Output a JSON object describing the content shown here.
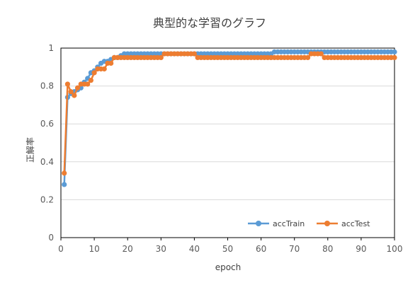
{
  "chart_data": {
    "type": "line",
    "title": "典型的な学習のグラフ",
    "xlabel": "epoch",
    "ylabel": "正解率",
    "xlim": [
      0,
      100
    ],
    "ylim": [
      0,
      1
    ],
    "xticks": [
      0,
      10,
      20,
      30,
      40,
      50,
      60,
      70,
      80,
      90,
      100
    ],
    "yticks": [
      0,
      0.2,
      0.4,
      0.6,
      0.8,
      1
    ],
    "ytick_labels": [
      "0",
      "0.2",
      "0.4",
      "0.6",
      "0.8",
      "1"
    ],
    "grid": "horizontal",
    "legend_position": "bottom-right",
    "x": [
      1,
      2,
      3,
      4,
      5,
      6,
      7,
      8,
      9,
      10,
      11,
      12,
      13,
      14,
      15,
      16,
      17,
      18,
      19,
      20,
      21,
      22,
      23,
      24,
      25,
      26,
      27,
      28,
      29,
      30,
      31,
      32,
      33,
      34,
      35,
      36,
      37,
      38,
      39,
      40,
      41,
      42,
      43,
      44,
      45,
      46,
      47,
      48,
      49,
      50,
      51,
      52,
      53,
      54,
      55,
      56,
      57,
      58,
      59,
      60,
      61,
      62,
      63,
      64,
      65,
      66,
      67,
      68,
      69,
      70,
      71,
      72,
      73,
      74,
      75,
      76,
      77,
      78,
      79,
      80,
      81,
      82,
      83,
      84,
      85,
      86,
      87,
      88,
      89,
      90,
      91,
      92,
      93,
      94,
      95,
      96,
      97,
      98,
      99,
      100
    ],
    "series": [
      {
        "name": "accTrain",
        "color": "#5B9BD5",
        "values": [
          0.28,
          0.74,
          0.76,
          0.77,
          0.78,
          0.79,
          0.82,
          0.84,
          0.87,
          0.88,
          0.9,
          0.92,
          0.93,
          0.93,
          0.94,
          0.95,
          0.95,
          0.96,
          0.97,
          0.97,
          0.97,
          0.97,
          0.97,
          0.97,
          0.97,
          0.97,
          0.97,
          0.97,
          0.97,
          0.97,
          0.97,
          0.97,
          0.97,
          0.97,
          0.97,
          0.97,
          0.97,
          0.97,
          0.97,
          0.97,
          0.97,
          0.97,
          0.97,
          0.97,
          0.97,
          0.97,
          0.97,
          0.97,
          0.97,
          0.97,
          0.97,
          0.97,
          0.97,
          0.97,
          0.97,
          0.97,
          0.97,
          0.97,
          0.97,
          0.97,
          0.97,
          0.97,
          0.97,
          0.98,
          0.98,
          0.98,
          0.98,
          0.98,
          0.98,
          0.98,
          0.98,
          0.98,
          0.98,
          0.98,
          0.98,
          0.98,
          0.98,
          0.98,
          0.98,
          0.98,
          0.98,
          0.98,
          0.98,
          0.98,
          0.98,
          0.98,
          0.98,
          0.98,
          0.98,
          0.98,
          0.98,
          0.98,
          0.98,
          0.98,
          0.98,
          0.98,
          0.98,
          0.98,
          0.98,
          0.98
        ]
      },
      {
        "name": "accTest",
        "color": "#ED7D31",
        "values": [
          0.34,
          0.81,
          0.77,
          0.75,
          0.79,
          0.81,
          0.81,
          0.81,
          0.83,
          0.87,
          0.89,
          0.89,
          0.89,
          0.92,
          0.92,
          0.95,
          0.95,
          0.95,
          0.95,
          0.95,
          0.95,
          0.95,
          0.95,
          0.95,
          0.95,
          0.95,
          0.95,
          0.95,
          0.95,
          0.95,
          0.97,
          0.97,
          0.97,
          0.97,
          0.97,
          0.97,
          0.97,
          0.97,
          0.97,
          0.97,
          0.95,
          0.95,
          0.95,
          0.95,
          0.95,
          0.95,
          0.95,
          0.95,
          0.95,
          0.95,
          0.95,
          0.95,
          0.95,
          0.95,
          0.95,
          0.95,
          0.95,
          0.95,
          0.95,
          0.95,
          0.95,
          0.95,
          0.95,
          0.95,
          0.95,
          0.95,
          0.95,
          0.95,
          0.95,
          0.95,
          0.95,
          0.95,
          0.95,
          0.95,
          0.97,
          0.97,
          0.97,
          0.97,
          0.95,
          0.95,
          0.95,
          0.95,
          0.95,
          0.95,
          0.95,
          0.95,
          0.95,
          0.95,
          0.95,
          0.95,
          0.95,
          0.95,
          0.95,
          0.95,
          0.95,
          0.95,
          0.95,
          0.95,
          0.95,
          0.95
        ]
      }
    ]
  }
}
